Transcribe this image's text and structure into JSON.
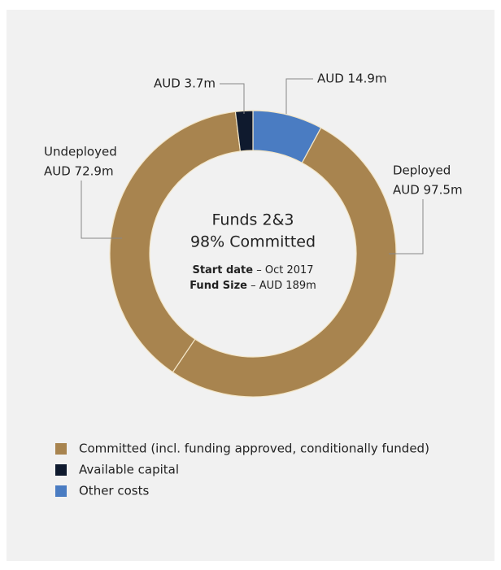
{
  "chart_data": {
    "type": "donut",
    "categories": [
      null,
      "Deployed",
      "Undeployed",
      null
    ],
    "values": [
      14.9,
      97.5,
      72.9,
      3.7
    ],
    "value_labels": [
      "AUD 14.9m",
      "AUD 97.5m",
      "AUD 72.9m",
      "AUD 3.7m"
    ],
    "colors": [
      "#4a7cc2",
      "#a8844f",
      "#a8844f",
      "#0f1a2e"
    ],
    "center": {
      "title": "Funds 2&3",
      "subtitle": "98% Committed",
      "details": [
        {
          "label": "Start date",
          "text": " – Oct 2017"
        },
        {
          "label": "Fund Size",
          "text": " – AUD 189m"
        }
      ]
    },
    "legend": [
      {
        "name": "Committed (incl. funding approved, conditionally funded)",
        "color": "#a8844f"
      },
      {
        "name": "Available capital",
        "color": "#0f1a2e"
      },
      {
        "name": "Other costs",
        "color": "#4a7cc2"
      }
    ]
  }
}
